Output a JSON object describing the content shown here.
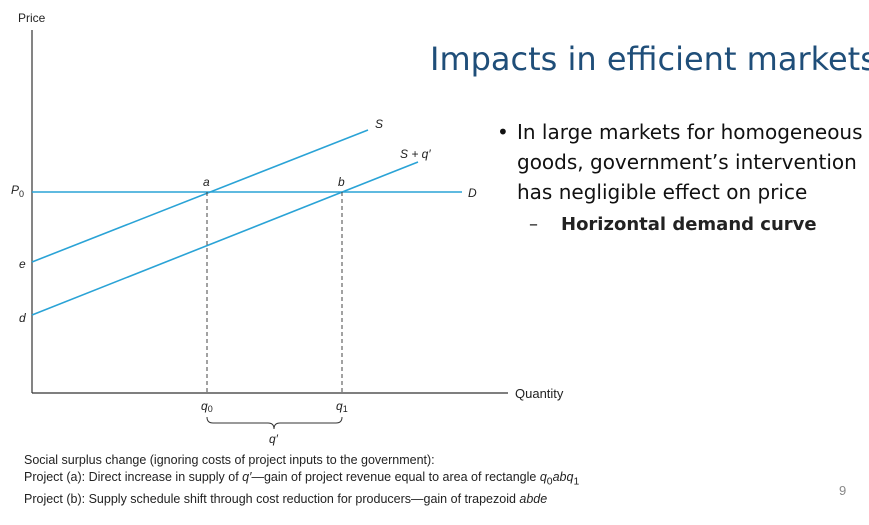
{
  "slide": {
    "title": "Impacts in efficient markets I",
    "page_number": "9"
  },
  "bullets": [
    {
      "text": "In large markets for homogeneous\ngoods, government’s intervention\nhas negligible effect on price",
      "sub": "Horizontal demand curve"
    }
  ],
  "diagram": {
    "y_axis_label": "Price",
    "x_axis_label": "Quantity",
    "price_label": "P",
    "price_subscript": "0",
    "intercept_e": "e",
    "intercept_d": "d",
    "curve_S": "S",
    "curve_S_shift": "S + q′",
    "curve_D": "D",
    "point_a": "a",
    "point_b": "b",
    "q0": "q",
    "q0_sub": "0",
    "q1": "q",
    "q1_sub": "1",
    "q_prime": "q′",
    "colors": {
      "curve": "#2aa3d6",
      "axis": "#333333",
      "text": "#222222",
      "title": "#1f4e79"
    }
  },
  "caption": {
    "line1": "Social surplus change (ignoring costs of project inputs to the government):",
    "line2_a": "Project (a): Direct increase in supply of ",
    "line2_q": "q′",
    "line2_b": "—gain of project revenue equal to area of rectangle ",
    "line2_c": "q",
    "line2_sub0": "0",
    "line2_d": "abq",
    "line2_sub1": "1",
    "line3_a": "Project (b): Supply schedule shift through cost reduction for producers—gain of trapezoid ",
    "line3_b": "abde"
  }
}
